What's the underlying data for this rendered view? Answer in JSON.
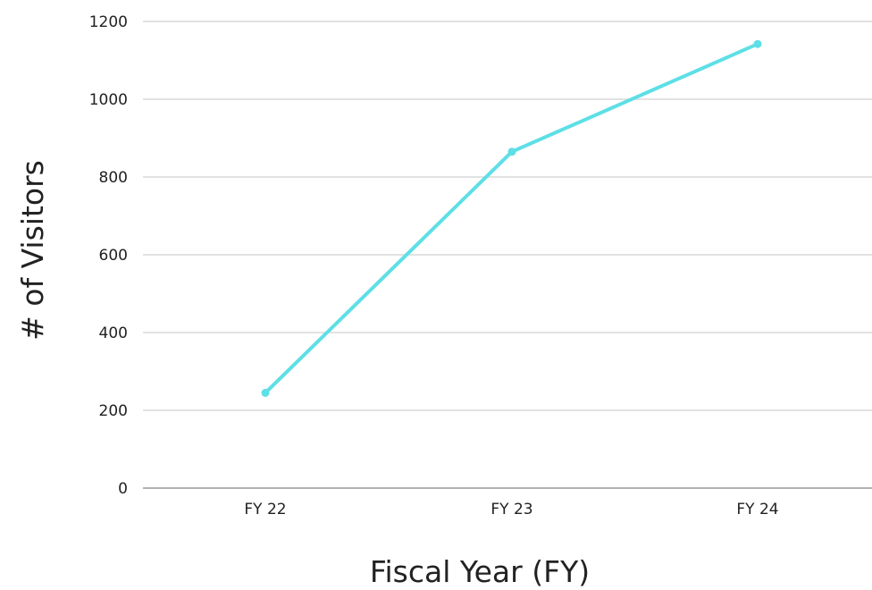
{
  "chart_data": {
    "type": "line",
    "title": "",
    "xlabel": "Fiscal Year (FY)",
    "ylabel": "# of Visitors",
    "categories": [
      "FY 22",
      "FY 23",
      "FY 24"
    ],
    "series": [
      {
        "values": [
          245,
          865,
          1142
        ],
        "color": "#5ddfe6"
      }
    ],
    "ylim": [
      0,
      1200
    ],
    "yticks": [
      "0",
      "200",
      "400",
      "600",
      "800",
      "1000",
      "1200"
    ],
    "grid": true,
    "legend": "none"
  }
}
